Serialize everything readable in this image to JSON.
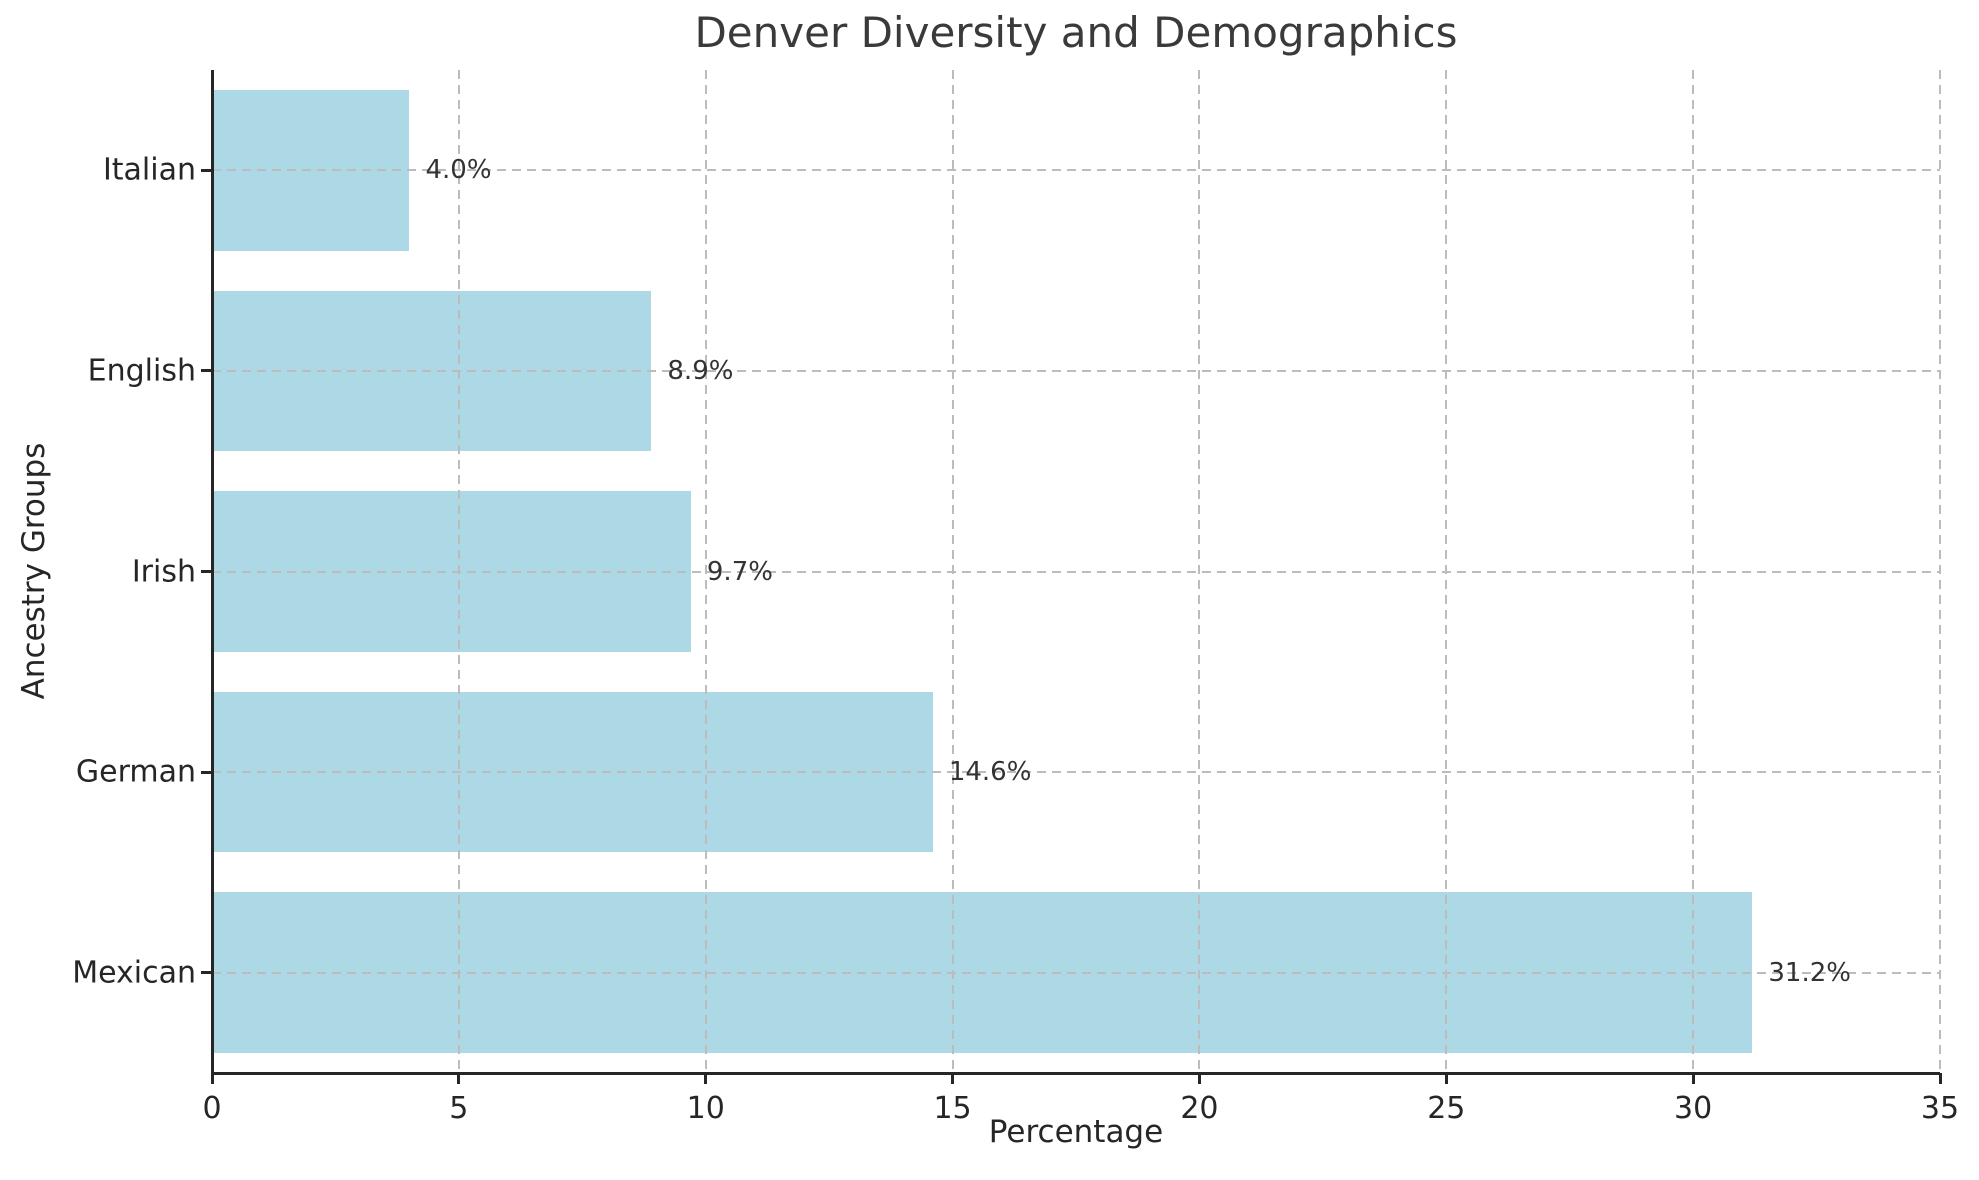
{
  "chart_data": {
    "type": "bar",
    "orientation": "horizontal",
    "title": "Denver Diversity and Demographics",
    "xlabel": "Percentage",
    "ylabel": "Ancestry Groups",
    "categories_order": "top-to-bottom",
    "categories": [
      "Italian",
      "English",
      "Irish",
      "German",
      "Mexican"
    ],
    "values": [
      4.0,
      8.9,
      9.7,
      14.6,
      31.2
    ],
    "value_labels": [
      "4.0%",
      "8.9%",
      "9.7%",
      "14.6%",
      "31.2%"
    ],
    "xlim": [
      0,
      35
    ],
    "xticks": [
      0,
      5,
      10,
      15,
      20,
      25,
      30,
      35
    ],
    "bar_fraction": 0.8,
    "grid": "dashed-both-axes",
    "legend_position": "none",
    "colors": {
      "bar": "#ADD8E6",
      "grid": "#bcbcbc",
      "spine": "#262626",
      "title_text": "#3a3a3a",
      "tick_text": "#262626",
      "value_text": "#333333",
      "background": "#ffffff"
    }
  }
}
